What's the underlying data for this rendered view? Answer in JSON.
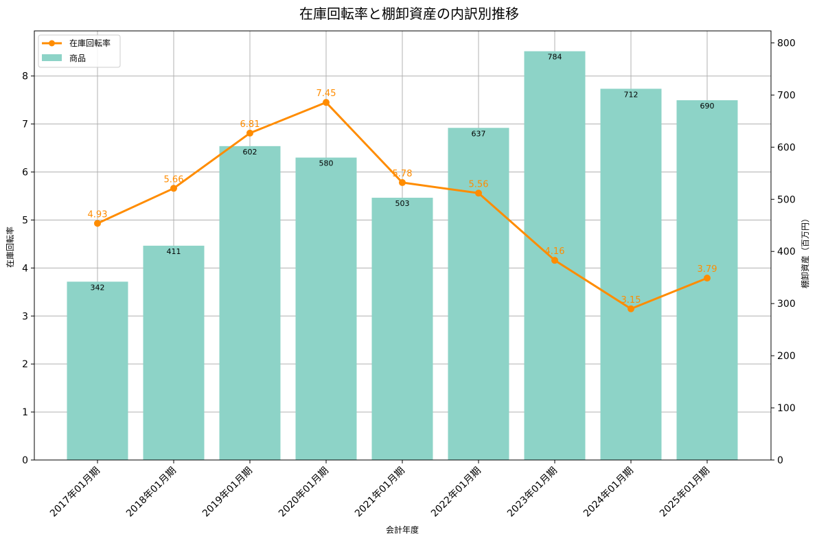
{
  "chart_data": {
    "type": "bar+line",
    "title": "在庫回転率と棚卸資産の内訳別推移",
    "xlabel": "会計年度",
    "ylabel_left": "在庫回転率",
    "ylabel_right": "棚卸資産（百万円）",
    "categories": [
      "2017年01月期",
      "2018年01月期",
      "2019年01月期",
      "2020年01月期",
      "2021年01月期",
      "2022年01月期",
      "2023年01月期",
      "2024年01月期",
      "2025年01月期"
    ],
    "series": [
      {
        "name": "商品",
        "type": "bar",
        "axis": "right",
        "color": "#8dd3c7",
        "values": [
          342,
          411,
          602,
          580,
          503,
          637,
          784,
          712,
          690
        ]
      },
      {
        "name": "在庫回転率",
        "type": "line",
        "axis": "left",
        "color": "#ff8c00",
        "marker": "circle",
        "values": [
          4.93,
          5.66,
          6.81,
          7.45,
          5.78,
          5.56,
          4.16,
          3.15,
          3.79
        ]
      }
    ],
    "ylim_left": [
      0,
      8.94
    ],
    "ylim_right": [
      0,
      823
    ],
    "yticks_left": [
      0,
      1,
      2,
      3,
      4,
      5,
      6,
      7,
      8
    ],
    "yticks_right": [
      0,
      100,
      200,
      300,
      400,
      500,
      600,
      700,
      800
    ],
    "grid": true,
    "legend_position": "upper left",
    "legend": [
      "在庫回転率",
      "商品"
    ]
  }
}
